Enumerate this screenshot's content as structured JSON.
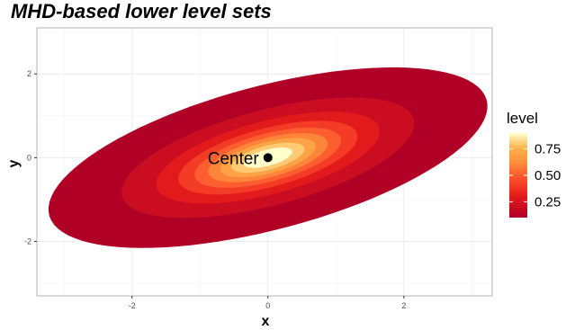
{
  "chart_data": {
    "type": "contour",
    "title": "MHD-based lower level sets",
    "xlabel": "x",
    "ylabel": "y",
    "xlim": [
      -3.4,
      3.3
    ],
    "ylim": [
      -3.3,
      3.1
    ],
    "x_ticks": [
      -2,
      0,
      2
    ],
    "y_ticks": [
      -2,
      0,
      2
    ],
    "x_tick_labels": [
      "-2",
      "0",
      "2"
    ],
    "y_tick_labels": [
      "-2",
      "0",
      "2"
    ],
    "grid": true,
    "legend": {
      "title": "level",
      "placement": "right",
      "labels": [
        "0.75",
        "0.50",
        "0.25"
      ],
      "values": [
        0.75,
        0.5,
        0.25
      ],
      "range": [
        0.1,
        0.9
      ]
    },
    "annotation": {
      "text": "Center",
      "x": 0,
      "y": 0
    },
    "center": {
      "x": 0,
      "y": 0
    },
    "rotation_deg": 27,
    "outer_semi_axes": [
      3.53,
      1.62
    ],
    "levels": [
      0.1,
      0.2,
      0.3,
      0.4,
      0.5,
      0.6,
      0.7,
      0.8,
      0.9
    ],
    "colors": {
      "low": "#b10026",
      "mid_low": "#e31a1c",
      "mid": "#fc4e2a",
      "mid_high": "#fd8d3c",
      "high": "#feb24c",
      "top": "#ffffcc"
    }
  }
}
